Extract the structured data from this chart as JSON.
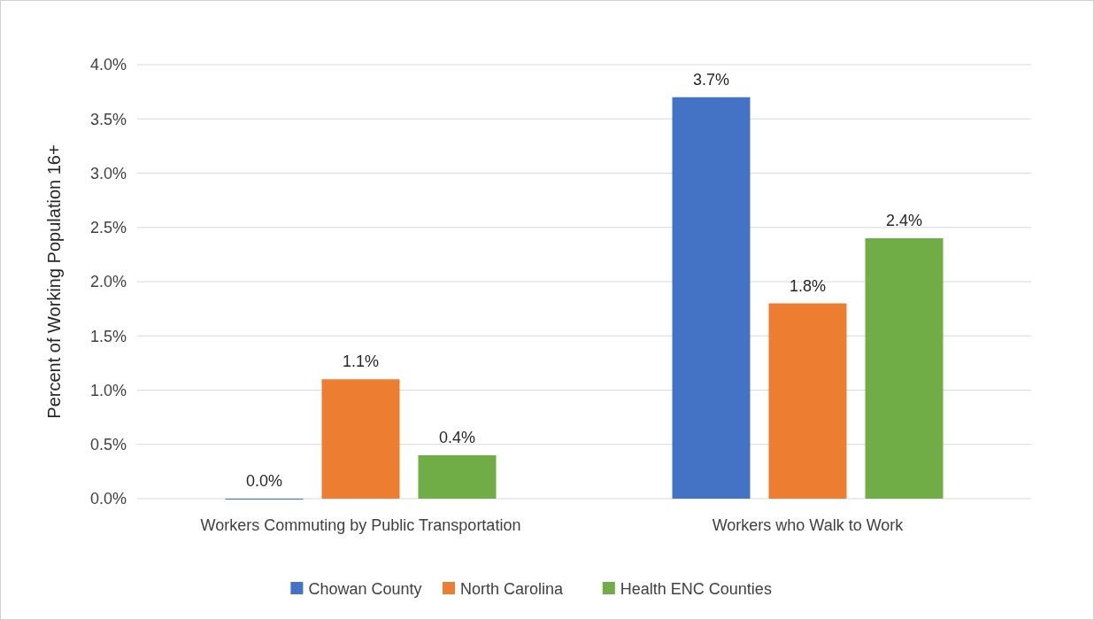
{
  "chart_data": {
    "type": "bar",
    "ylabel": "Percent of Working Population 16+",
    "categories": [
      "Workers Commuting by Public Transportation",
      "Workers who Walk to Work"
    ],
    "series": [
      {
        "name": "Chowan County",
        "color": "#4472c4",
        "values": [
          0.0,
          3.7
        ],
        "value_labels": [
          "0.0%",
          "3.7%"
        ]
      },
      {
        "name": "North Carolina",
        "color": "#ed7d31",
        "values": [
          1.1,
          1.8
        ],
        "value_labels": [
          "1.1%",
          "1.8%"
        ]
      },
      {
        "name": "Health ENC Counties",
        "color": "#70ad47",
        "values": [
          0.4,
          2.4
        ],
        "value_labels": [
          "0.4%",
          "2.4%"
        ]
      }
    ],
    "ylim": [
      0,
      4
    ],
    "yticks": [
      {
        "value": 0,
        "label": "0.0%"
      },
      {
        "value": 0.5,
        "label": "0.5%"
      },
      {
        "value": 1,
        "label": "1.0%"
      },
      {
        "value": 1.5,
        "label": "1.5%"
      },
      {
        "value": 2,
        "label": "2.0%"
      },
      {
        "value": 2.5,
        "label": "2.5%"
      },
      {
        "value": 3,
        "label": "3.0%"
      },
      {
        "value": 3.5,
        "label": "3.5%"
      },
      {
        "value": 4,
        "label": "4.0%"
      }
    ],
    "grid": "y",
    "legend": "bottom"
  }
}
